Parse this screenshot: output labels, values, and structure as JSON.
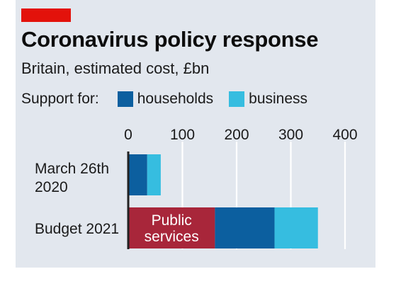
{
  "header": {
    "title": "Coronavirus policy response",
    "subtitle": "Britain, estimated cost, £bn"
  },
  "legend": {
    "intro": "Support for:",
    "entries": [
      {
        "label": "households",
        "color": "#0c5f9f"
      },
      {
        "label": "business",
        "color": "#36bde0"
      }
    ]
  },
  "chart_data": {
    "type": "bar",
    "orientation": "horizontal",
    "stacked": true,
    "categories": [
      "March 26th 2020",
      "Budget 2021"
    ],
    "category_lines": [
      [
        "March 26th",
        "2020"
      ],
      [
        "Budget 2021"
      ]
    ],
    "series": [
      {
        "name": "Public services",
        "values": [
          0,
          160
        ],
        "color": "#a8263a"
      },
      {
        "name": "households",
        "values": [
          35,
          110
        ],
        "color": "#0c5f9f"
      },
      {
        "name": "business",
        "values": [
          25,
          80
        ],
        "color": "#36bde0"
      }
    ],
    "xlim": [
      0,
      400
    ],
    "xticks": [
      0,
      100,
      200,
      300,
      400
    ],
    "grid": true,
    "legend_position": "top",
    "annotations": [
      {
        "lines": [
          "Public",
          "services"
        ]
      }
    ]
  }
}
